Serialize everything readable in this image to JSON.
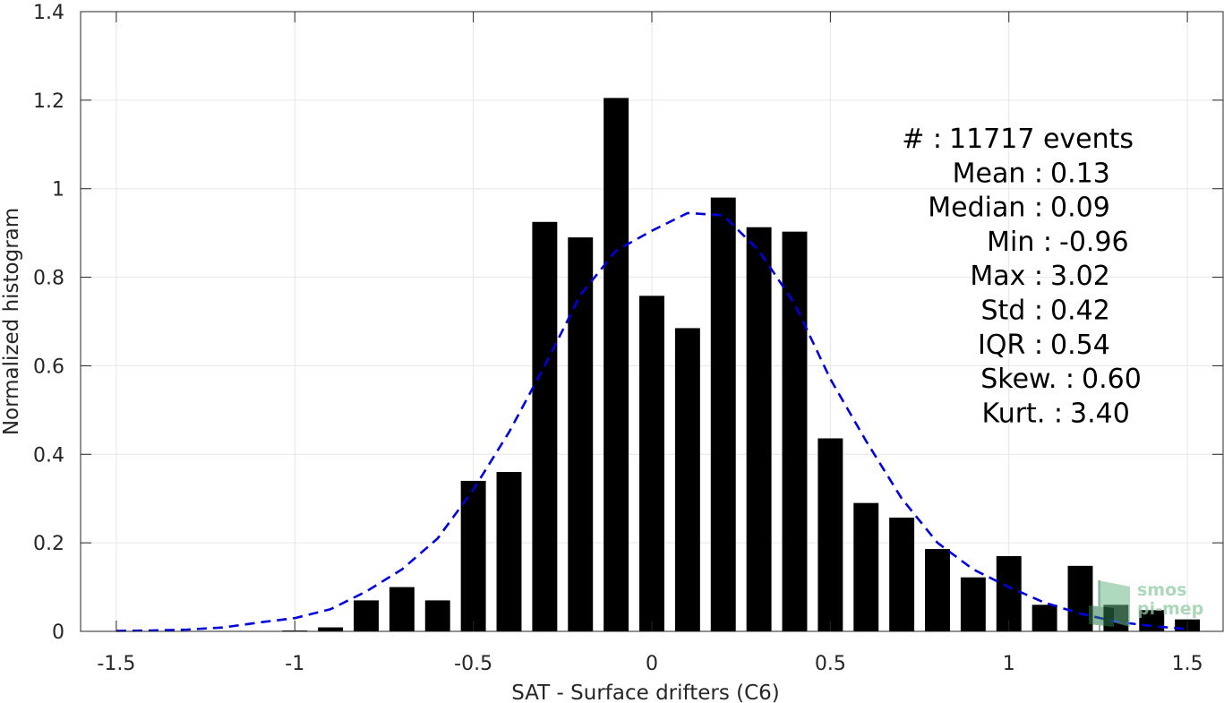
{
  "chart_data": {
    "type": "bar",
    "xlabel": "SAT - Surface drifters (C6)",
    "ylabel": "Normalized histogram",
    "xlim": [
      -1.6,
      1.6
    ],
    "ylim": [
      0,
      1.4
    ],
    "x_ticks": [
      -1.5,
      -1,
      -0.5,
      0,
      0.5,
      1,
      1.5
    ],
    "x_tick_labels": [
      "-1.5",
      "-1",
      "-0.5",
      "0",
      "0.5",
      "1",
      "1.5"
    ],
    "y_ticks": [
      0,
      0.2,
      0.4,
      0.6,
      0.8,
      1,
      1.2,
      1.4
    ],
    "y_tick_labels": [
      "0",
      "0.2",
      "0.4",
      "0.6",
      "0.8",
      "1",
      "1.2",
      "1.4"
    ],
    "grid": true,
    "bar_width": 0.07,
    "series": [
      {
        "type": "bar",
        "color": "#000000",
        "x": [
          -1.0,
          -0.9,
          -0.8,
          -0.7,
          -0.6,
          -0.5,
          -0.4,
          -0.3,
          -0.2,
          -0.1,
          0.0,
          0.1,
          0.2,
          0.3,
          0.4,
          0.5,
          0.6,
          0.7,
          0.8,
          0.9,
          1.0,
          1.1,
          1.2,
          1.3,
          1.4,
          1.5
        ],
        "values": [
          0.002,
          0.009,
          0.07,
          0.1,
          0.07,
          0.34,
          0.36,
          0.925,
          0.89,
          1.205,
          0.758,
          0.685,
          0.98,
          0.913,
          0.903,
          0.436,
          0.29,
          0.257,
          0.186,
          0.122,
          0.17,
          0.06,
          0.148,
          0.06,
          0.048,
          0.027
        ]
      },
      {
        "type": "line",
        "style": "dashed",
        "color": "#0000dd",
        "x": [
          -1.5,
          -1.4,
          -1.3,
          -1.2,
          -1.1,
          -1.0,
          -0.9,
          -0.8,
          -0.7,
          -0.6,
          -0.5,
          -0.4,
          -0.3,
          -0.2,
          -0.1,
          0.0,
          0.1,
          0.2,
          0.3,
          0.4,
          0.5,
          0.6,
          0.7,
          0.8,
          0.9,
          1.0,
          1.1,
          1.2,
          1.3,
          1.4,
          1.5
        ],
        "values": [
          0.001,
          0.002,
          0.004,
          0.009,
          0.02,
          0.03,
          0.05,
          0.09,
          0.14,
          0.21,
          0.32,
          0.45,
          0.6,
          0.76,
          0.86,
          0.905,
          0.945,
          0.94,
          0.86,
          0.74,
          0.57,
          0.43,
          0.3,
          0.2,
          0.14,
          0.1,
          0.065,
          0.04,
          0.022,
          0.012,
          0.005
        ]
      }
    ],
    "annotations": [
      {
        "label": "#  :",
        "value": "11717 events"
      },
      {
        "label": "Mean :",
        "value": "0.13"
      },
      {
        "label": "Median :",
        "value": "0.09"
      },
      {
        "label": "Min :",
        "value": "-0.96"
      },
      {
        "label": "Max :",
        "value": "3.02"
      },
      {
        "label": "Std :",
        "value": "0.42"
      },
      {
        "label": "IQR :",
        "value": "0.54"
      },
      {
        "label": "Skew. :",
        "value": "0.60"
      },
      {
        "label": "Kurt. :",
        "value": "3.40"
      }
    ]
  },
  "watermark": {
    "line1": "smos",
    "line2": "pi-mep",
    "color": "#5fb87e"
  }
}
